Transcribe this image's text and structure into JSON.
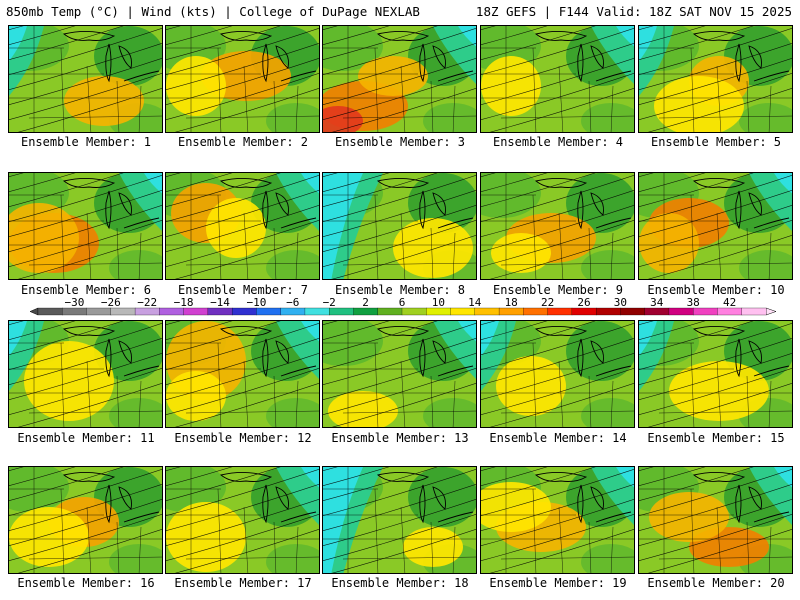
{
  "header": {
    "left": "850mb Temp (°C) | Wind (kts) | College of DuPage NEXLAB",
    "right": "18Z GEFS | F144 Valid: 18Z SAT NOV 15 2025"
  },
  "caption_prefix": "Ensemble Member:",
  "members": [
    {
      "label": "Ensemble Member: 1",
      "warm": [
        [
          95,
          75,
          40,
          25,
          "#f4b400"
        ]
      ],
      "cool": "nw"
    },
    {
      "label": "Ensemble Member: 2",
      "warm": [
        [
          80,
          50,
          45,
          25,
          "#f4a300"
        ],
        [
          30,
          60,
          30,
          30,
          "#ffe600"
        ]
      ],
      "cool": "none"
    },
    {
      "label": "Ensemble Member: 3",
      "warm": [
        [
          40,
          80,
          45,
          25,
          "#f08000"
        ],
        [
          15,
          95,
          25,
          15,
          "#e23a1c"
        ],
        [
          70,
          50,
          35,
          20,
          "#f4b400"
        ]
      ],
      "cool": "ne"
    },
    {
      "label": "Ensemble Member: 4",
      "warm": [
        [
          30,
          60,
          30,
          30,
          "#ffe600"
        ]
      ],
      "cool": "ne"
    },
    {
      "label": "Ensemble Member: 5",
      "warm": [
        [
          80,
          55,
          30,
          25,
          "#f4b400"
        ],
        [
          60,
          80,
          45,
          30,
          "#ffe600"
        ]
      ],
      "cool": "nw"
    },
    {
      "label": "Ensemble Member: 6",
      "warm": [
        [
          45,
          70,
          45,
          30,
          "#f08000"
        ],
        [
          30,
          65,
          40,
          35,
          "#f4b400"
        ]
      ],
      "cool": "ne"
    },
    {
      "label": "Ensemble Member: 7",
      "warm": [
        [
          40,
          40,
          35,
          30,
          "#f4a300"
        ],
        [
          70,
          55,
          30,
          30,
          "#ffe600"
        ]
      ],
      "cool": "ne"
    },
    {
      "label": "Ensemble Member: 8",
      "warm": [
        [
          110,
          75,
          40,
          30,
          "#ffe600"
        ]
      ],
      "cool": "west"
    },
    {
      "label": "Ensemble Member: 9",
      "warm": [
        [
          70,
          65,
          45,
          25,
          "#f4a300"
        ],
        [
          40,
          80,
          30,
          20,
          "#ffe600"
        ]
      ],
      "cool": "none"
    },
    {
      "label": "Ensemble Member: 10",
      "warm": [
        [
          50,
          50,
          40,
          25,
          "#f08000"
        ],
        [
          30,
          70,
          30,
          30,
          "#f4b400"
        ]
      ],
      "cool": "ne"
    },
    {
      "label": "Ensemble Member: 11",
      "warm": [
        [
          60,
          60,
          45,
          40,
          "#ffe600"
        ]
      ],
      "cool": "nw"
    },
    {
      "label": "Ensemble Member: 12",
      "warm": [
        [
          40,
          40,
          40,
          40,
          "#f4b400"
        ],
        [
          30,
          75,
          30,
          25,
          "#ffe600"
        ]
      ],
      "cool": "ne"
    },
    {
      "label": "Ensemble Member: 13",
      "warm": [
        [
          40,
          90,
          35,
          20,
          "#ffe600"
        ]
      ],
      "cool": "ne"
    },
    {
      "label": "Ensemble Member: 14",
      "warm": [
        [
          50,
          65,
          35,
          30,
          "#ffe600"
        ]
      ],
      "cool": "nw"
    },
    {
      "label": "Ensemble Member: 15",
      "warm": [
        [
          80,
          70,
          50,
          30,
          "#ffe600"
        ]
      ],
      "cool": "nw"
    },
    {
      "label": "Ensemble Member: 16",
      "warm": [
        [
          75,
          55,
          35,
          25,
          "#f4a300"
        ],
        [
          40,
          70,
          40,
          30,
          "#ffe600"
        ]
      ],
      "cool": "none"
    },
    {
      "label": "Ensemble Member: 17",
      "warm": [
        [
          40,
          70,
          40,
          35,
          "#ffe600"
        ]
      ],
      "cool": "ne"
    },
    {
      "label": "Ensemble Member: 18",
      "warm": [
        [
          110,
          80,
          30,
          20,
          "#ffe600"
        ]
      ],
      "cool": "west"
    },
    {
      "label": "Ensemble Member: 19",
      "warm": [
        [
          60,
          60,
          45,
          25,
          "#f4b400"
        ],
        [
          30,
          40,
          40,
          25,
          "#ffe600"
        ]
      ],
      "cool": "ne"
    },
    {
      "label": "Ensemble Member: 20",
      "warm": [
        [
          90,
          80,
          40,
          20,
          "#f08000"
        ],
        [
          50,
          50,
          40,
          25,
          "#f4b400"
        ]
      ],
      "cool": "ne"
    }
  ],
  "colorbar": {
    "ticks": [
      "−30",
      "−26",
      "−22",
      "−18",
      "−14",
      "−10",
      "−6",
      "−2",
      "2",
      "6",
      "10",
      "14",
      "18",
      "22",
      "26",
      "30",
      "34",
      "38",
      "42"
    ],
    "colors": [
      "#5a5a5a",
      "#7a7a7a",
      "#9a9a9a",
      "#b8b8b8",
      "#c8a0e0",
      "#b060e0",
      "#d040d0",
      "#7030c0",
      "#3030d0",
      "#2070f0",
      "#30b0f0",
      "#40e0e0",
      "#20c080",
      "#10a040",
      "#60b020",
      "#a0d020",
      "#e0f000",
      "#ffe600",
      "#ffc000",
      "#ffa000",
      "#ff7000",
      "#ff3000",
      "#e00000",
      "#b00000",
      "#900000",
      "#a00030",
      "#d00080",
      "#f040c0",
      "#ff80e0",
      "#ffc0f0"
    ]
  },
  "palette": {
    "base": "#8ac926",
    "dark_green": "#2e9e2e",
    "mid_green": "#5cb82e",
    "teal": "#2ecc8a",
    "cyan": "#2ee0e0"
  }
}
